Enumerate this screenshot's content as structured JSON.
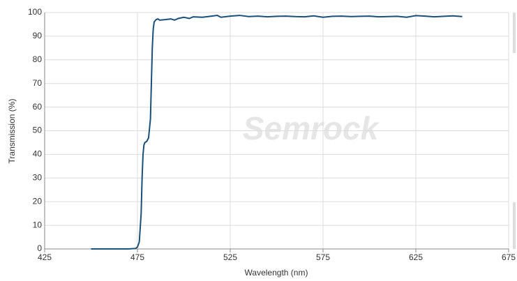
{
  "chart_data": {
    "type": "line",
    "watermark": "Semrock",
    "xlabel": "Wavelength (nm)",
    "ylabel": "Transmission (%)",
    "x": [
      450,
      470,
      474,
      475,
      476,
      477,
      477.5,
      478,
      478.5,
      479,
      480,
      481,
      482,
      482.5,
      483,
      483.5,
      484,
      485,
      486,
      487,
      490,
      493,
      495,
      497,
      500,
      503,
      505,
      510,
      515,
      518,
      520,
      525,
      530,
      535,
      540,
      545,
      550,
      555,
      560,
      565,
      570,
      575,
      580,
      585,
      590,
      595,
      600,
      605,
      610,
      615,
      620,
      625,
      630,
      635,
      640,
      645,
      650
    ],
    "values": [
      0,
      0,
      0.2,
      0.8,
      3,
      15,
      30,
      40,
      44,
      45,
      45.5,
      47,
      55,
      70,
      85,
      93,
      96,
      97,
      97.3,
      96.8,
      97,
      97.3,
      96.8,
      97.5,
      98,
      97.5,
      98.2,
      98,
      98.5,
      98.8,
      98,
      98.5,
      98.8,
      98.3,
      98.5,
      98.2,
      98.4,
      98.5,
      98.3,
      98.2,
      98.6,
      98,
      98.4,
      98.5,
      98.3,
      98.4,
      98.5,
      98.2,
      98.3,
      98.4,
      98,
      98.7,
      98.5,
      98.2,
      98.4,
      98.6,
      98.3
    ],
    "color": "#1a4f7a",
    "xlim": [
      425,
      675
    ],
    "xticks": [
      425,
      475,
      525,
      575,
      625,
      675
    ],
    "ylim": [
      0,
      100
    ],
    "yticks": [
      0,
      10,
      20,
      30,
      40,
      50,
      60,
      70,
      80,
      90,
      100
    ],
    "grid": true
  }
}
